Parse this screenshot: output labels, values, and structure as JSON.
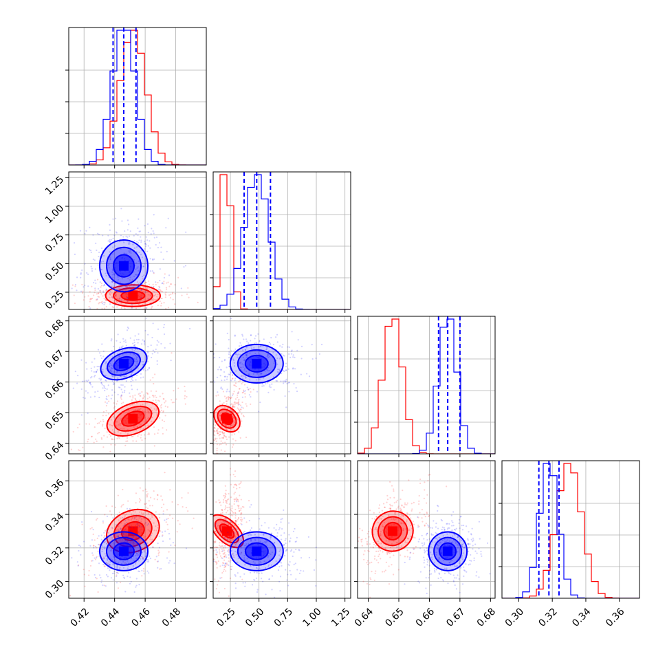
{
  "chart_data": {
    "type": "corner",
    "title": "",
    "parameters": [
      {
        "xlim": [
          0.41,
          0.5
        ],
        "ticks": [
          0.42,
          0.44,
          0.46,
          0.48
        ],
        "tick_labels": [
          "0.42",
          "0.44",
          "0.46",
          "0.48"
        ]
      },
      {
        "xlim": [
          0.1,
          1.3
        ],
        "ticks": [
          0.25,
          0.5,
          0.75,
          1.0,
          1.25
        ],
        "tick_labels": [
          "0.25",
          "0.50",
          "0.75",
          "1.00",
          "1.25"
        ]
      },
      {
        "xlim": [
          0.6365,
          0.6815
        ],
        "ticks": [
          0.64,
          0.65,
          0.66,
          0.67,
          0.68
        ],
        "tick_labels": [
          "0.64",
          "0.65",
          "0.66",
          "0.67",
          "0.68"
        ]
      },
      {
        "xlim": [
          0.29,
          0.372
        ],
        "ticks": [
          0.3,
          0.32,
          0.34,
          0.36
        ],
        "tick_labels": [
          "0.30",
          "0.32",
          "0.34",
          "0.36"
        ]
      }
    ],
    "series": [
      {
        "color": "#ff0000",
        "mean": [
          0.452,
          0.22,
          0.648,
          0.33
        ],
        "sd": [
          0.0085,
          0.045,
          0.0032,
          0.0075
        ],
        "corr": [
          [
            1,
            0,
            0.6,
            0.5
          ],
          [
            0,
            1,
            0.6,
            0.5
          ],
          [
            0.6,
            0.6,
            1,
            0.55
          ],
          [
            0.5,
            0.5,
            0.55,
            1
          ]
        ],
        "quantiles": null
      },
      {
        "color": "#0000ff",
        "mean": [
          0.446,
          0.48,
          0.666,
          0.318
        ],
        "sd": [
          0.0075,
          0.11,
          0.003,
          0.0055
        ],
        "corr": [
          [
            1,
            0.05,
            0.55,
            0
          ],
          [
            0.05,
            1,
            0,
            0
          ],
          [
            0.55,
            0,
            1,
            0
          ],
          [
            0,
            0,
            0,
            1
          ]
        ],
        "quantiles": [
          [
            0.439,
            0.446,
            0.454
          ],
          [
            0.37,
            0.48,
            0.6
          ],
          [
            0.663,
            0.666,
            0.67
          ],
          [
            0.312,
            0.318,
            0.324
          ]
        ]
      }
    ],
    "grid": true,
    "legend": "none"
  }
}
